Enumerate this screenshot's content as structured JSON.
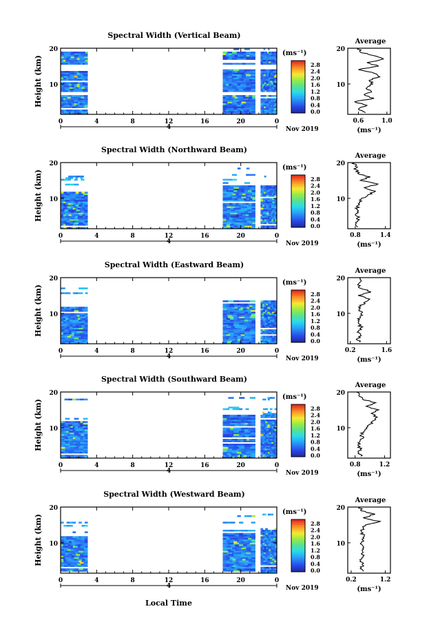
{
  "figure": {
    "xlabel": "Local Time",
    "date_label": "4",
    "month_label": "Nov 2019",
    "colorbar_unit": "(ms⁻¹)",
    "colorbar_ticks": [
      "2.8",
      "2.4",
      "2.0",
      "1.6",
      "1.2",
      "0.8",
      "0.4",
      "0.0"
    ],
    "average_title": "Average",
    "average_unit": "(ms⁻¹)"
  },
  "chart_data": [
    {
      "type": "heatmap",
      "title": "Spectral Width (Vertical Beam)",
      "ylabel": "Height (km)",
      "xticks": [
        "0",
        "4",
        "8",
        "12",
        "16",
        "20",
        "0"
      ],
      "yticks": [
        "20",
        "10"
      ],
      "xlim": [
        0,
        24
      ],
      "ylim": [
        1.5,
        20
      ],
      "clim": [
        0,
        3.0
      ],
      "data_intervals": [
        [
          0,
          3
        ],
        [
          18,
          21.6
        ],
        [
          22.2,
          24
        ]
      ],
      "gap_heights_km": [
        14.5,
        7.0
      ],
      "profile": {
        "title": "Average",
        "xticks": [
          "0.6",
          "1.0"
        ],
        "xlim": [
          0.45,
          1.05
        ],
        "yticks": [
          "20",
          "10"
        ],
        "height_km": [
          2,
          3,
          4,
          5,
          6,
          7,
          8,
          9,
          10,
          11,
          12,
          13,
          14,
          15,
          16,
          17,
          18,
          19,
          20
        ],
        "values": [
          0.7,
          0.6,
          0.72,
          0.55,
          0.82,
          0.68,
          0.78,
          0.72,
          0.8,
          0.75,
          0.9,
          0.82,
          0.6,
          0.88,
          0.72,
          0.95,
          0.8,
          0.62,
          0.6
        ]
      }
    },
    {
      "type": "heatmap",
      "title": "Spectral Width (Northward Beam)",
      "ylabel": "Height (km)",
      "xticks": [
        "0",
        "4",
        "8",
        "12",
        "16",
        "20",
        "0"
      ],
      "yticks": [
        "20",
        "10"
      ],
      "xlim": [
        0,
        24
      ],
      "ylim": [
        1.5,
        20
      ],
      "clim": [
        0,
        3.0
      ],
      "data_intervals": [
        [
          0,
          3
        ],
        [
          18,
          21.6
        ],
        [
          22.2,
          24
        ]
      ],
      "gap_heights_km": [],
      "profile": {
        "title": "Average",
        "xticks": [
          "0.8",
          "1.4"
        ],
        "xlim": [
          0.65,
          1.5
        ],
        "yticks": [
          "20",
          "10"
        ],
        "height_km": [
          2,
          3,
          4,
          5,
          6,
          7,
          8,
          9,
          10,
          11,
          12,
          13,
          14,
          15,
          16,
          17,
          18,
          19,
          20
        ],
        "values": [
          0.85,
          0.82,
          0.88,
          0.83,
          0.86,
          0.84,
          0.85,
          0.88,
          0.92,
          1.05,
          1.2,
          0.98,
          1.25,
          0.9,
          1.1,
          0.85,
          0.82,
          0.8,
          0.78
        ]
      }
    },
    {
      "type": "heatmap",
      "title": "Spectral Width (Eastward Beam)",
      "ylabel": "Height (km)",
      "xticks": [
        "0",
        "4",
        "8",
        "12",
        "16",
        "20",
        "0"
      ],
      "yticks": [
        "20",
        "10"
      ],
      "xlim": [
        0,
        24
      ],
      "ylim": [
        1.5,
        20
      ],
      "clim": [
        0,
        3.0
      ],
      "data_intervals": [
        [
          0,
          3
        ],
        [
          18,
          21.6
        ],
        [
          22.2,
          24
        ]
      ],
      "gap_heights_km": [],
      "profile": {
        "title": "Average",
        "xticks": [
          "0.2",
          "1.6"
        ],
        "xlim": [
          0.1,
          1.75
        ],
        "yticks": [
          "20",
          "10"
        ],
        "height_km": [
          2,
          3,
          4,
          5,
          6,
          7,
          8,
          9,
          10,
          11,
          12,
          13,
          14,
          15,
          16,
          17,
          18,
          19,
          20
        ],
        "values": [
          0.55,
          0.48,
          0.6,
          0.52,
          0.62,
          0.55,
          0.5,
          0.58,
          0.62,
          0.55,
          0.6,
          0.72,
          0.95,
          0.5,
          1.0,
          0.6,
          0.48,
          0.62,
          0.55
        ]
      }
    },
    {
      "type": "heatmap",
      "title": "Spectral Width (Southward Beam)",
      "ylabel": "Height (km)",
      "xticks": [
        "0",
        "4",
        "8",
        "12",
        "16",
        "20",
        "0"
      ],
      "yticks": [
        "20",
        "10"
      ],
      "xlim": [
        0,
        24
      ],
      "ylim": [
        1.5,
        20
      ],
      "clim": [
        0,
        3.0
      ],
      "data_intervals": [
        [
          0,
          3
        ],
        [
          18,
          21.6
        ],
        [
          22.2,
          24
        ]
      ],
      "gap_heights_km": [],
      "profile": {
        "title": "Average",
        "xticks": [
          "0.8",
          "1.2"
        ],
        "xlim": [
          0.7,
          1.28
        ],
        "yticks": [
          "20",
          "10"
        ],
        "height_km": [
          2,
          3,
          4,
          5,
          6,
          7,
          8,
          9,
          10,
          11,
          12,
          13,
          14,
          15,
          16,
          17,
          18,
          19,
          20
        ],
        "values": [
          0.88,
          0.85,
          0.87,
          0.84,
          0.86,
          0.9,
          0.88,
          0.92,
          0.95,
          1.0,
          1.05,
          1.1,
          1.02,
          1.12,
          0.95,
          1.08,
          0.9,
          0.85,
          0.82
        ]
      }
    },
    {
      "type": "heatmap",
      "title": "Spectral Width (Westward Beam)",
      "ylabel": "Height (km)",
      "xticks": [
        "0",
        "4",
        "8",
        "12",
        "16",
        "20",
        "0"
      ],
      "yticks": [
        "20",
        "10"
      ],
      "xlim": [
        0,
        24
      ],
      "ylim": [
        1.5,
        20
      ],
      "clim": [
        0,
        3.0
      ],
      "data_intervals": [
        [
          0,
          3
        ],
        [
          18,
          21.6
        ],
        [
          22.2,
          24
        ]
      ],
      "gap_heights_km": [],
      "profile": {
        "title": "Average",
        "xticks": [
          "0.2",
          "1.2"
        ],
        "xlim": [
          0.1,
          1.35
        ],
        "yticks": [
          "20",
          "10"
        ],
        "height_km": [
          2,
          3,
          4,
          5,
          6,
          7,
          8,
          9,
          10,
          11,
          12,
          13,
          14,
          15,
          16,
          17,
          18,
          19,
          20
        ],
        "values": [
          0.55,
          0.5,
          0.52,
          0.48,
          0.55,
          0.5,
          0.52,
          0.55,
          0.5,
          0.52,
          0.58,
          0.5,
          0.55,
          0.62,
          1.05,
          0.55,
          0.9,
          0.48,
          0.45
        ]
      }
    }
  ]
}
